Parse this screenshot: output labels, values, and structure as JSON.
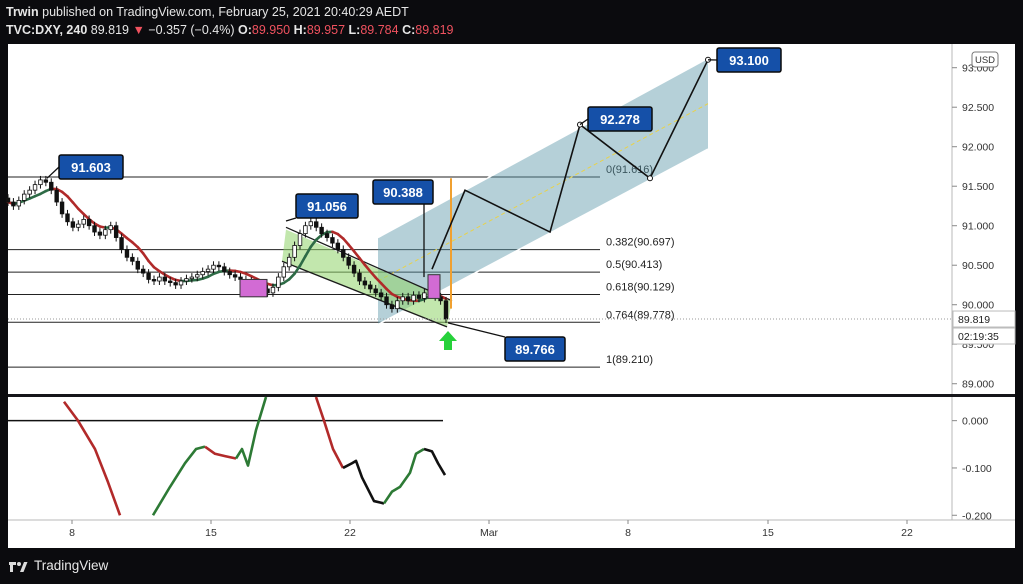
{
  "header": {
    "publisher": "Trwin",
    "published_text": "published on TradingView.com, February 25, 2021 20:40:29 AEDT",
    "symbol": "TVC:DXY, 240",
    "last": "89.819",
    "change": "−0.357 (−0.4%)",
    "open_label": "O:",
    "open": "89.950",
    "high_label": "H:",
    "high": "89.957",
    "low_label": "L:",
    "low": "89.784",
    "close_label": "C:",
    "close": "89.819"
  },
  "footer": {
    "brand": "TradingView"
  },
  "chart_data": {
    "type": "candlestick",
    "currency": "USD",
    "price_axis": {
      "ticks": [
        93.0,
        92.5,
        92.0,
        91.5,
        91.0,
        90.5,
        90.0,
        89.5,
        89.0
      ],
      "range": [
        88.87,
        93.3
      ]
    },
    "time_axis": {
      "labels": [
        "8",
        "15",
        "22",
        "Mar",
        "8",
        "15",
        "22"
      ]
    },
    "last_price_label": "89.819",
    "countdown": "02:19:35",
    "fib_levels": [
      {
        "label": "0(91.616)",
        "value": 91.616
      },
      {
        "label": "0.382(90.697)",
        "value": 90.697
      },
      {
        "label": "0.5(90.413)",
        "value": 90.413
      },
      {
        "label": "0.618(90.129)",
        "value": 90.129
      },
      {
        "label": "0.764(89.778)",
        "value": 89.778
      },
      {
        "label": "1(89.210)",
        "value": 89.21
      }
    ],
    "callouts": [
      "91.603",
      "91.056",
      "90.388",
      "92.278",
      "93.100",
      "89.766"
    ],
    "closes": [
      91.3,
      91.25,
      91.32,
      91.4,
      91.45,
      91.52,
      91.58,
      91.55,
      91.45,
      91.3,
      91.15,
      91.05,
      90.98,
      91.02,
      91.08,
      91.0,
      90.92,
      90.88,
      90.95,
      91.0,
      90.85,
      90.7,
      90.6,
      90.55,
      90.45,
      90.4,
      90.32,
      90.3,
      90.35,
      90.3,
      90.28,
      90.25,
      90.3,
      90.33,
      90.35,
      90.38,
      90.42,
      90.45,
      90.5,
      90.48,
      90.42,
      90.38,
      90.35,
      90.32,
      90.3,
      90.28,
      90.25,
      90.2,
      90.15,
      90.22,
      90.35,
      90.48,
      90.6,
      90.75,
      90.9,
      91.0,
      91.05,
      90.98,
      90.9,
      90.85,
      90.78,
      90.7,
      90.6,
      90.5,
      90.4,
      90.3,
      90.25,
      90.2,
      90.15,
      90.1,
      90.0,
      89.95,
      90.05,
      90.1,
      90.05,
      90.12,
      90.08,
      90.15,
      90.2,
      90.1,
      90.05,
      89.82
    ],
    "oscillator": {
      "ticks": [
        0.0,
        -0.1,
        -0.2
      ],
      "range": [
        -0.21,
        0.05
      ]
    }
  }
}
